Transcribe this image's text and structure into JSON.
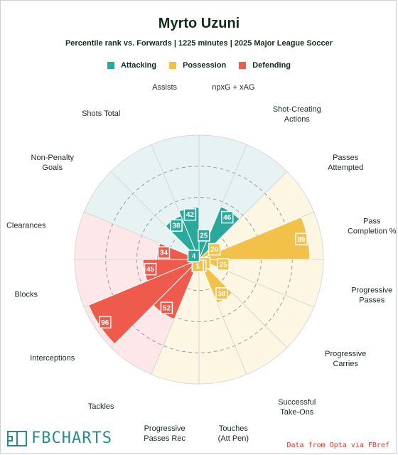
{
  "header": {
    "title": "Myrto Uzuni",
    "subtitle": "Percentile rank vs. Forwards | 1225 minutes | 2025 Major League Soccer"
  },
  "legend": [
    {
      "label": "Attacking",
      "color": "#2ba89c"
    },
    {
      "label": "Possession",
      "color": "#f2c14a"
    },
    {
      "label": "Defending",
      "color": "#ee5a4c"
    }
  ],
  "chart_data": {
    "type": "radar",
    "range": [
      0,
      100
    ],
    "grid": true,
    "gridlines": [
      25,
      50,
      75
    ],
    "categories": {
      "Attacking": {
        "color": "#2ba89c",
        "bg": "#e6f3f2"
      },
      "Possession": {
        "color": "#f2c14a",
        "bg": "#fdf6e3"
      },
      "Defending": {
        "color": "#ee5a4c",
        "bg": "#fde7e8"
      }
    },
    "metrics": [
      {
        "label": "npxG + xAG",
        "value": 25,
        "category": "Attacking"
      },
      {
        "label": "Shot-Creating Actions",
        "value": 46,
        "category": "Attacking"
      },
      {
        "label": "Passes Attempted",
        "value": 20,
        "category": "Possession"
      },
      {
        "label": "Pass Completion %",
        "value": 89,
        "category": "Possession"
      },
      {
        "label": "Progressive Passes",
        "value": 25,
        "category": "Possession"
      },
      {
        "label": "Progressive Carries",
        "value": 6,
        "category": "Possession"
      },
      {
        "label": "Successful Take-Ons",
        "value": 38,
        "category": "Possession"
      },
      {
        "label": "Touches (Att Pen)",
        "value": 6,
        "category": "Possession"
      },
      {
        "label": "Progressive Passes Rec",
        "value": 1,
        "category": "Possession"
      },
      {
        "label": "Tackles",
        "value": 52,
        "category": "Defending"
      },
      {
        "label": "Interceptions",
        "value": 96,
        "category": "Defending"
      },
      {
        "label": "Blocks",
        "value": 45,
        "category": "Defending"
      },
      {
        "label": "Clearances",
        "value": 34,
        "category": "Defending"
      },
      {
        "label": "Non-Penalty Goals",
        "value": 4,
        "category": "Attacking"
      },
      {
        "label": "Shots Total",
        "value": 38,
        "category": "Attacking"
      },
      {
        "label": "Assists",
        "value": 42,
        "category": "Attacking"
      }
    ]
  },
  "footer": {
    "brand": "FBCHARTS",
    "source": "Data from Opta via FBref"
  }
}
